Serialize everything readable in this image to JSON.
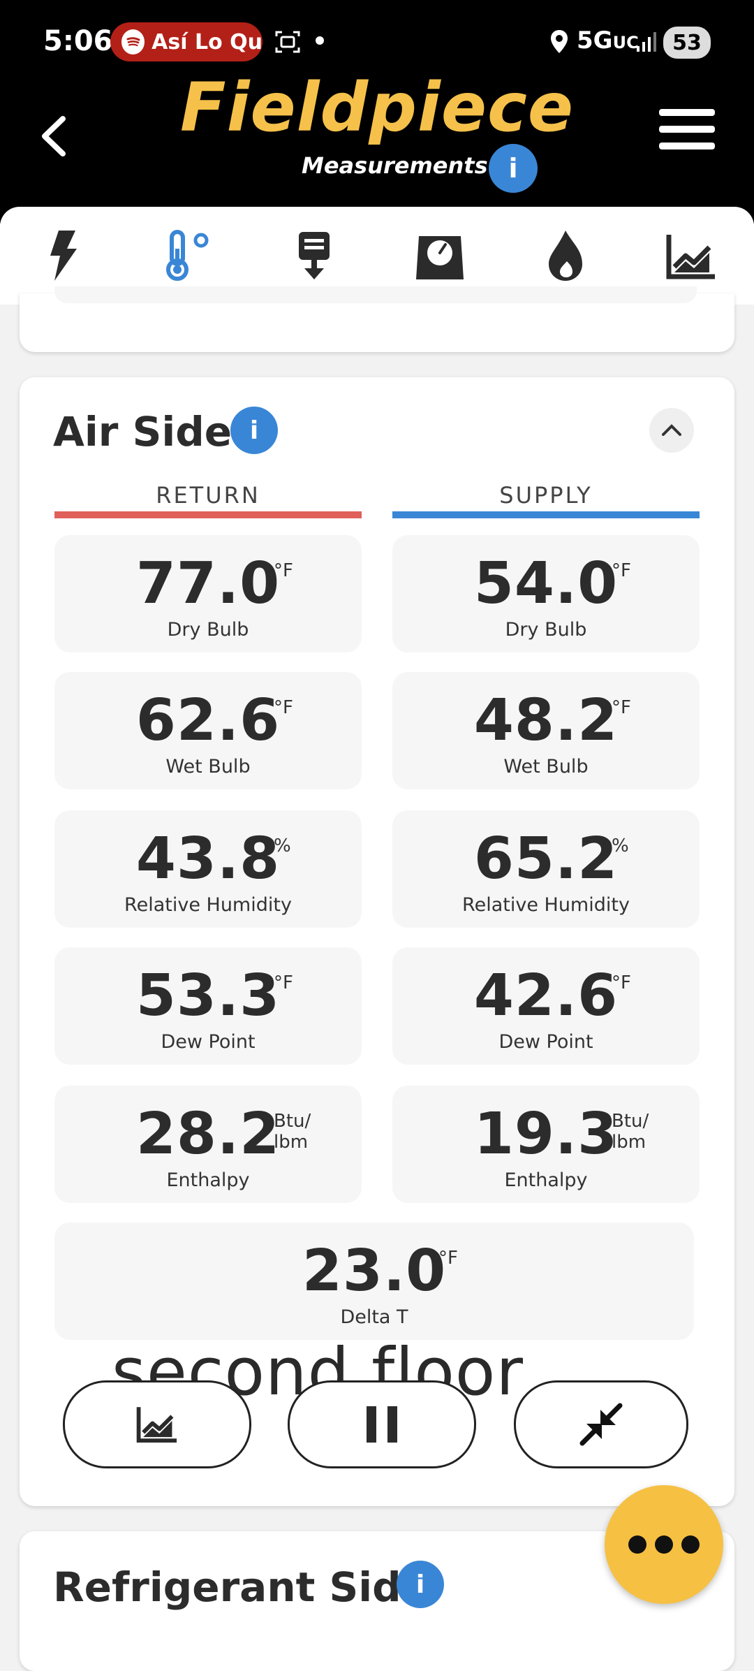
{
  "status_bar": {
    "time": "5:06",
    "media_text": "Así Lo Qu",
    "network": "5G",
    "network_suffix": "UC",
    "battery": "53"
  },
  "header": {
    "brand": "Fieldpiece",
    "subtitle": "Measurements",
    "brand_color": "#f5c14a"
  },
  "tabs": [
    {
      "name": "electrical",
      "icon": "bolt-icon",
      "active": false
    },
    {
      "name": "temperature",
      "icon": "thermometer-icon",
      "active": true
    },
    {
      "name": "airflow",
      "icon": "airflow-icon",
      "active": false
    },
    {
      "name": "scale",
      "icon": "scale-icon",
      "active": false
    },
    {
      "name": "combustion",
      "icon": "flame-icon",
      "active": false
    },
    {
      "name": "trends",
      "icon": "chart-icon",
      "active": false
    }
  ],
  "air_side": {
    "title": "Air Side",
    "return_header": "RETURN",
    "supply_header": "SUPPLY",
    "return_color": "#e0605a",
    "supply_color": "#3a86d6",
    "return": [
      {
        "value": "77.0",
        "unit": "°F",
        "label": "Dry Bulb"
      },
      {
        "value": "62.6",
        "unit": "°F",
        "label": "Wet Bulb"
      },
      {
        "value": "43.8",
        "unit": "%",
        "label": "Relative Humidity"
      },
      {
        "value": "53.3",
        "unit": "°F",
        "label": "Dew Point"
      },
      {
        "value": "28.2",
        "unit": "Btu/ lbm",
        "label": "Enthalpy"
      }
    ],
    "supply": [
      {
        "value": "54.0",
        "unit": "°F",
        "label": "Dry Bulb"
      },
      {
        "value": "48.2",
        "unit": "°F",
        "label": "Wet Bulb"
      },
      {
        "value": "65.2",
        "unit": "%",
        "label": "Relative Humidity"
      },
      {
        "value": "42.6",
        "unit": "°F",
        "label": "Dew Point"
      },
      {
        "value": "19.3",
        "unit": "Btu/ lbm",
        "label": "Enthalpy"
      }
    ],
    "delta": {
      "value": "23.0",
      "unit": "°F",
      "label": "Delta T"
    },
    "overlay_text": "second floor"
  },
  "refrigerant_side": {
    "title": "Refrigerant Side"
  }
}
